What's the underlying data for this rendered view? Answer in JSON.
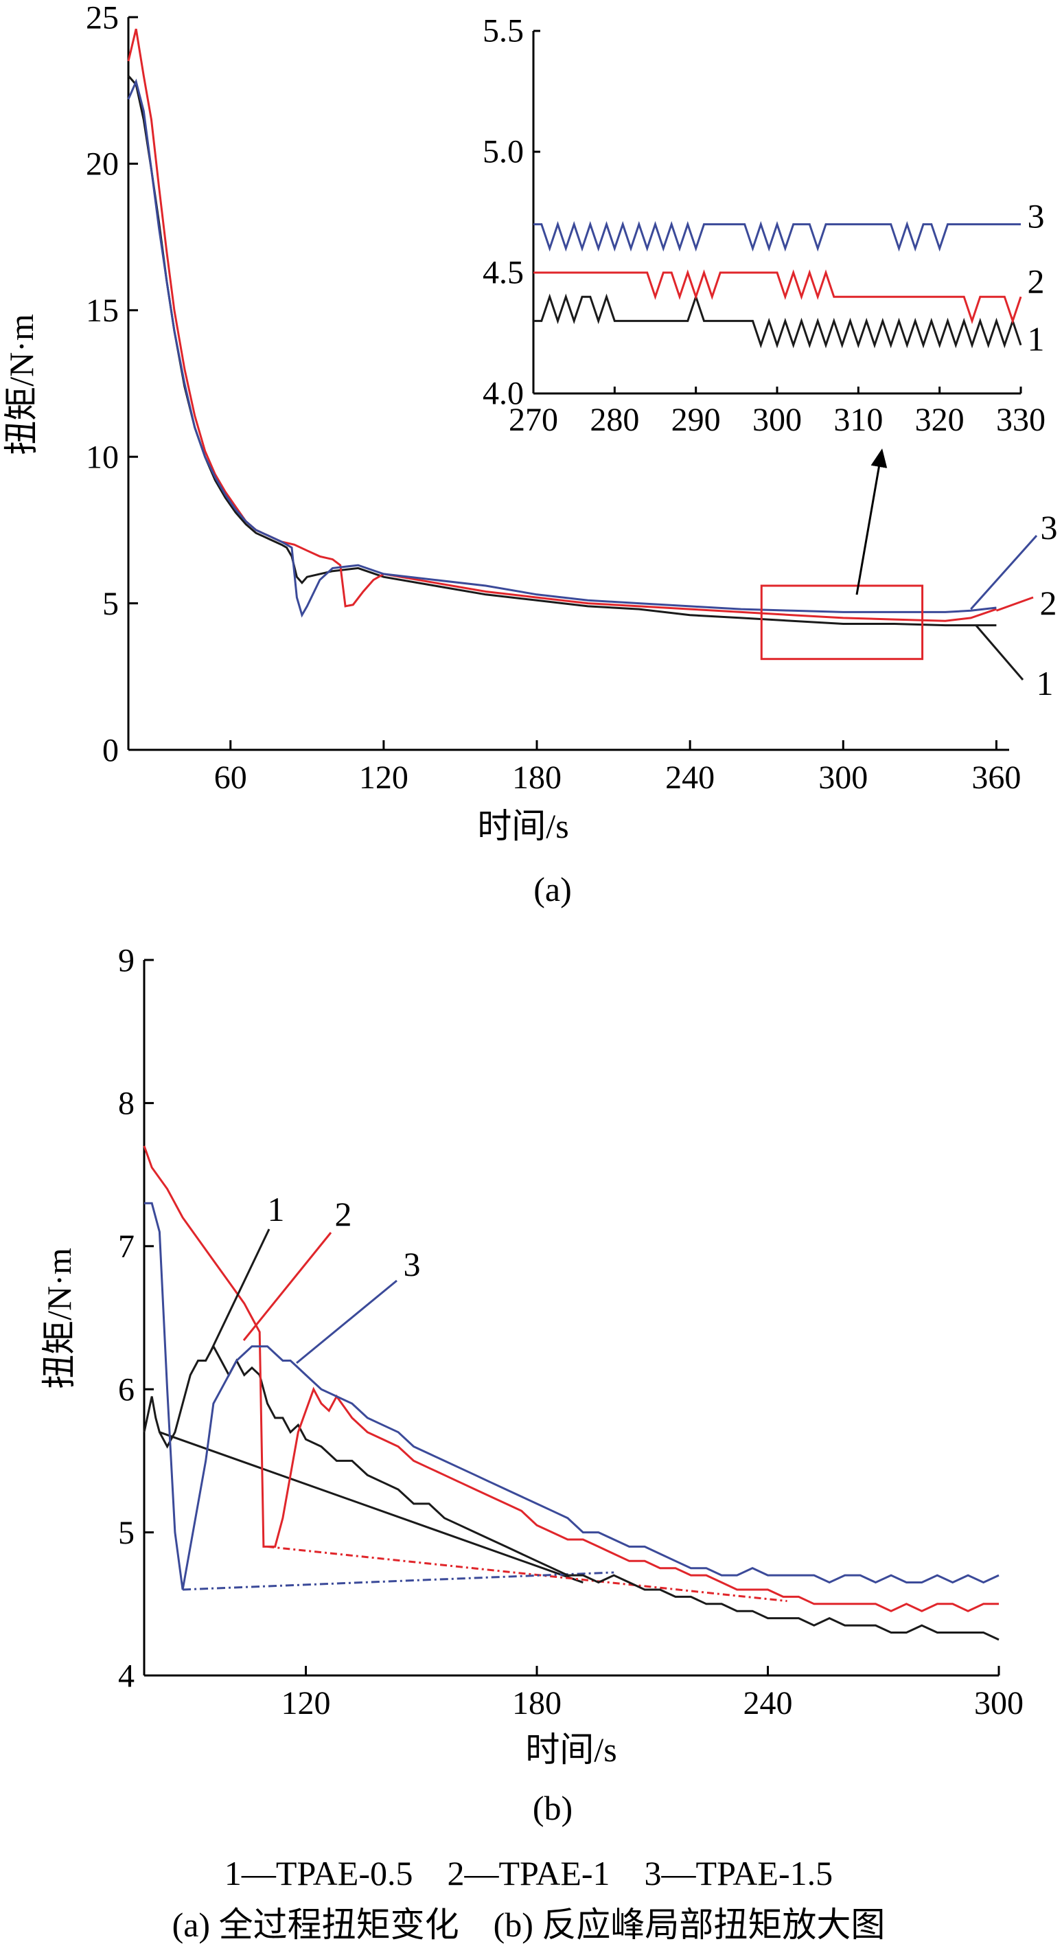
{
  "colors": {
    "series1": "#1a1a1a",
    "series2": "#e0262b",
    "series3": "#3b4a99",
    "axis": "#000000",
    "highlight": "#e0262b"
  },
  "legend_text": "1—TPAE-0.5    2—TPAE-1    3—TPAE-1.5",
  "caption_text": "(a) 全过程扭矩变化    (b) 反应峰局部扭矩放大图",
  "chart_data": [
    {
      "id": "a",
      "type": "line",
      "panel_label": "(a)",
      "xlabel": "时间/s",
      "ylabel": "扭矩/N·m",
      "xlim": [
        20,
        365
      ],
      "ylim": [
        0,
        25
      ],
      "xticks": [
        60,
        120,
        180,
        240,
        300,
        360
      ],
      "yticks": [
        0,
        5,
        10,
        15,
        20,
        25
      ],
      "zoom_box": {
        "x": [
          268,
          331
        ],
        "y": [
          3.1,
          5.6
        ]
      },
      "series": [
        {
          "label": "1",
          "x": [
            20,
            23,
            26,
            29,
            32,
            35,
            38,
            42,
            46,
            50,
            54,
            58,
            62,
            66,
            70,
            75,
            80,
            82,
            84,
            86,
            88,
            90,
            95,
            100,
            110,
            120,
            140,
            160,
            180,
            200,
            220,
            240,
            260,
            280,
            300,
            320,
            340,
            360
          ],
          "y": [
            23,
            22.7,
            21.5,
            19.8,
            18,
            16,
            14.3,
            12.4,
            11,
            10,
            9.2,
            8.6,
            8.1,
            7.7,
            7.4,
            7.2,
            7,
            6.9,
            6.6,
            5.9,
            5.7,
            5.9,
            6,
            6.1,
            6.2,
            5.9,
            5.6,
            5.3,
            5.1,
            4.9,
            4.8,
            4.6,
            4.5,
            4.4,
            4.3,
            4.3,
            4.25,
            4.25
          ]
        },
        {
          "label": "2",
          "x": [
            20,
            23,
            26,
            29,
            32,
            35,
            38,
            42,
            46,
            50,
            54,
            58,
            62,
            66,
            70,
            75,
            80,
            85,
            90,
            95,
            100,
            103,
            105,
            108,
            112,
            116,
            120,
            140,
            160,
            180,
            200,
            220,
            240,
            260,
            280,
            300,
            320,
            340,
            350,
            360
          ],
          "y": [
            23.5,
            24.6,
            23,
            21.5,
            19.2,
            17,
            15,
            13,
            11.4,
            10.2,
            9.4,
            8.8,
            8.3,
            7.8,
            7.5,
            7.3,
            7.1,
            7,
            6.8,
            6.6,
            6.5,
            6.3,
            4.9,
            4.95,
            5.4,
            5.8,
            6,
            5.7,
            5.4,
            5.2,
            5,
            4.9,
            4.8,
            4.7,
            4.6,
            4.5,
            4.45,
            4.4,
            4.5,
            4.8
          ]
        },
        {
          "label": "3",
          "x": [
            20,
            23,
            26,
            29,
            32,
            35,
            38,
            42,
            46,
            50,
            54,
            58,
            62,
            66,
            70,
            75,
            80,
            82,
            84,
            86,
            88,
            90,
            95,
            100,
            110,
            120,
            140,
            160,
            180,
            200,
            220,
            240,
            260,
            280,
            300,
            320,
            340,
            350,
            360
          ],
          "y": [
            22.2,
            22.8,
            21.8,
            19.8,
            17.8,
            16,
            14.3,
            12.5,
            11,
            10,
            9.3,
            8.7,
            8.2,
            7.8,
            7.5,
            7.3,
            7.1,
            7,
            6.9,
            5.2,
            4.6,
            4.9,
            5.8,
            6.2,
            6.3,
            6,
            5.8,
            5.6,
            5.3,
            5.1,
            5,
            4.9,
            4.8,
            4.75,
            4.7,
            4.7,
            4.7,
            4.75,
            4.85
          ]
        }
      ],
      "curve_labels": [
        "3",
        "2",
        "1"
      ]
    },
    {
      "id": "a-inset",
      "type": "line",
      "xlim": [
        270,
        330
      ],
      "ylim": [
        4.0,
        5.5
      ],
      "xticks": [
        270,
        280,
        290,
        300,
        310,
        320,
        330
      ],
      "yticks": [
        4.0,
        4.5,
        5.0,
        5.5
      ],
      "series": [
        {
          "label": "1",
          "x": [
            270,
            271,
            272,
            273,
            274,
            275,
            276,
            277,
            278,
            279,
            280,
            285,
            289,
            290,
            291,
            297,
            298,
            299,
            300,
            301,
            302,
            303,
            304,
            305,
            306,
            307,
            308,
            309,
            310,
            311,
            312,
            313,
            314,
            315,
            316,
            317,
            318,
            319,
            320,
            321,
            322,
            323,
            324,
            325,
            326,
            327,
            328,
            329,
            330
          ],
          "y": [
            4.3,
            4.3,
            4.4,
            4.3,
            4.4,
            4.3,
            4.4,
            4.4,
            4.3,
            4.4,
            4.3,
            4.3,
            4.3,
            4.4,
            4.3,
            4.3,
            4.2,
            4.3,
            4.2,
            4.3,
            4.2,
            4.3,
            4.2,
            4.3,
            4.2,
            4.3,
            4.2,
            4.3,
            4.2,
            4.3,
            4.2,
            4.3,
            4.2,
            4.3,
            4.2,
            4.3,
            4.2,
            4.3,
            4.2,
            4.3,
            4.2,
            4.3,
            4.2,
            4.3,
            4.2,
            4.3,
            4.2,
            4.3,
            4.2
          ]
        },
        {
          "label": "2",
          "x": [
            270,
            284,
            285,
            286,
            287,
            288,
            289,
            290,
            291,
            292,
            293,
            294,
            295,
            296,
            300,
            301,
            302,
            303,
            304,
            305,
            306,
            307,
            308,
            322,
            323,
            324,
            325,
            327,
            328,
            329,
            330
          ],
          "y": [
            4.5,
            4.5,
            4.4,
            4.5,
            4.5,
            4.4,
            4.5,
            4.4,
            4.5,
            4.4,
            4.5,
            4.5,
            4.5,
            4.5,
            4.5,
            4.4,
            4.5,
            4.4,
            4.5,
            4.4,
            4.5,
            4.4,
            4.4,
            4.4,
            4.4,
            4.3,
            4.4,
            4.4,
            4.4,
            4.3,
            4.4
          ]
        },
        {
          "label": "3",
          "x": [
            270,
            271,
            272,
            273,
            274,
            275,
            276,
            277,
            278,
            279,
            280,
            281,
            282,
            283,
            284,
            285,
            286,
            287,
            288,
            289,
            290,
            291,
            292,
            296,
            297,
            298,
            299,
            300,
            301,
            302,
            303,
            304,
            305,
            306,
            314,
            315,
            316,
            317,
            318,
            319,
            320,
            321,
            330
          ],
          "y": [
            4.7,
            4.7,
            4.6,
            4.7,
            4.6,
            4.7,
            4.6,
            4.7,
            4.6,
            4.7,
            4.6,
            4.7,
            4.6,
            4.7,
            4.6,
            4.7,
            4.6,
            4.7,
            4.6,
            4.7,
            4.6,
            4.7,
            4.7,
            4.7,
            4.6,
            4.7,
            4.6,
            4.7,
            4.6,
            4.7,
            4.7,
            4.7,
            4.6,
            4.7,
            4.7,
            4.6,
            4.7,
            4.6,
            4.7,
            4.7,
            4.6,
            4.7,
            4.7
          ]
        }
      ],
      "curve_labels": [
        "3",
        "2",
        "1"
      ]
    },
    {
      "id": "b",
      "type": "line",
      "panel_label": "(b)",
      "xlabel": "时间/s",
      "ylabel": "扭矩/N·m",
      "xlim": [
        78,
        300
      ],
      "ylim": [
        4,
        9
      ],
      "xticks": [
        120,
        180,
        240,
        300
      ],
      "yticks": [
        4,
        5,
        6,
        7,
        8,
        9
      ],
      "series": [
        {
          "label": "1",
          "x": [
            78,
            80,
            81,
            82,
            84,
            86,
            88,
            90,
            92,
            94,
            96,
            98,
            100,
            102,
            104,
            106,
            108,
            110,
            112,
            114,
            116,
            118,
            120,
            124,
            128,
            132,
            136,
            140,
            144,
            148,
            152,
            156,
            160,
            164,
            168,
            172,
            176,
            180,
            184,
            188,
            192,
            196,
            200,
            204,
            208,
            212,
            216,
            220,
            224,
            228,
            232,
            236,
            240,
            244,
            248,
            252,
            256,
            260,
            264,
            268,
            272,
            276,
            280,
            284,
            288,
            292,
            296,
            300
          ],
          "y": [
            5.7,
            5.95,
            5.8,
            5.7,
            5.6,
            5.7,
            5.9,
            6.1,
            6.2,
            6.2,
            6.3,
            6.2,
            6.1,
            6.2,
            6.1,
            6.15,
            6.1,
            5.9,
            5.8,
            5.8,
            5.7,
            5.75,
            5.65,
            5.6,
            5.5,
            5.5,
            5.4,
            5.35,
            5.3,
            5.2,
            5.2,
            5.1,
            5.05,
            5,
            4.95,
            4.9,
            4.85,
            4.8,
            4.75,
            4.7,
            4.7,
            4.65,
            4.7,
            4.65,
            4.6,
            4.6,
            4.55,
            4.55,
            4.5,
            4.5,
            4.45,
            4.45,
            4.4,
            4.4,
            4.4,
            4.35,
            4.4,
            4.35,
            4.35,
            4.35,
            4.3,
            4.3,
            4.35,
            4.3,
            4.3,
            4.3,
            4.3,
            4.25
          ]
        },
        {
          "label": "2",
          "x": [
            78,
            80,
            84,
            88,
            92,
            96,
            100,
            104,
            106,
            108,
            109,
            110,
            112,
            114,
            116,
            118,
            120,
            122,
            124,
            126,
            128,
            132,
            136,
            140,
            144,
            148,
            152,
            156,
            160,
            164,
            168,
            172,
            176,
            180,
            184,
            188,
            192,
            196,
            200,
            204,
            208,
            212,
            216,
            220,
            224,
            228,
            232,
            236,
            240,
            244,
            248,
            252,
            256,
            260,
            264,
            268,
            272,
            276,
            280,
            284,
            288,
            292,
            296,
            300
          ],
          "y": [
            7.7,
            7.55,
            7.4,
            7.2,
            7.05,
            6.9,
            6.75,
            6.6,
            6.5,
            6.4,
            4.9,
            4.9,
            4.9,
            5.1,
            5.4,
            5.7,
            5.85,
            6,
            5.9,
            5.85,
            5.95,
            5.8,
            5.7,
            5.65,
            5.6,
            5.5,
            5.45,
            5.4,
            5.35,
            5.3,
            5.25,
            5.2,
            5.15,
            5.05,
            5,
            4.95,
            4.95,
            4.9,
            4.85,
            4.8,
            4.8,
            4.75,
            4.75,
            4.7,
            4.7,
            4.65,
            4.6,
            4.6,
            4.6,
            4.55,
            4.55,
            4.5,
            4.5,
            4.5,
            4.5,
            4.5,
            4.45,
            4.5,
            4.45,
            4.5,
            4.5,
            4.45,
            4.5,
            4.5
          ]
        },
        {
          "label": "3",
          "x": [
            78,
            80,
            82,
            84,
            86,
            88,
            90,
            92,
            94,
            96,
            98,
            100,
            102,
            104,
            106,
            108,
            110,
            112,
            114,
            116,
            118,
            120,
            124,
            128,
            132,
            136,
            140,
            144,
            148,
            152,
            156,
            160,
            164,
            168,
            172,
            176,
            180,
            184,
            188,
            192,
            196,
            200,
            204,
            208,
            212,
            216,
            220,
            224,
            228,
            232,
            236,
            240,
            244,
            248,
            252,
            256,
            260,
            264,
            268,
            272,
            276,
            280,
            284,
            288,
            292,
            296,
            300
          ],
          "y": [
            7.3,
            7.3,
            7.1,
            6,
            5,
            4.6,
            4.9,
            5.2,
            5.5,
            5.9,
            6,
            6.1,
            6.2,
            6.25,
            6.3,
            6.3,
            6.3,
            6.25,
            6.2,
            6.2,
            6.15,
            6.1,
            6,
            5.95,
            5.9,
            5.8,
            5.75,
            5.7,
            5.6,
            5.55,
            5.5,
            5.45,
            5.4,
            5.35,
            5.3,
            5.25,
            5.2,
            5.15,
            5.1,
            5,
            5,
            4.95,
            4.9,
            4.9,
            4.85,
            4.8,
            4.75,
            4.75,
            4.7,
            4.7,
            4.75,
            4.7,
            4.7,
            4.7,
            4.7,
            4.65,
            4.7,
            4.7,
            4.65,
            4.7,
            4.65,
            4.65,
            4.7,
            4.65,
            4.7,
            4.65,
            4.7
          ]
        }
      ],
      "trend_lines": [
        {
          "series": "1",
          "x": [
            82,
            192
          ],
          "y": [
            5.7,
            4.65
          ]
        },
        {
          "series": "2",
          "x": [
            110,
            245
          ],
          "y": [
            4.9,
            4.52
          ]
        },
        {
          "series": "3",
          "x": [
            88,
            200
          ],
          "y": [
            4.6,
            4.72
          ]
        }
      ],
      "curve_labels": [
        "1",
        "2",
        "3"
      ]
    }
  ]
}
